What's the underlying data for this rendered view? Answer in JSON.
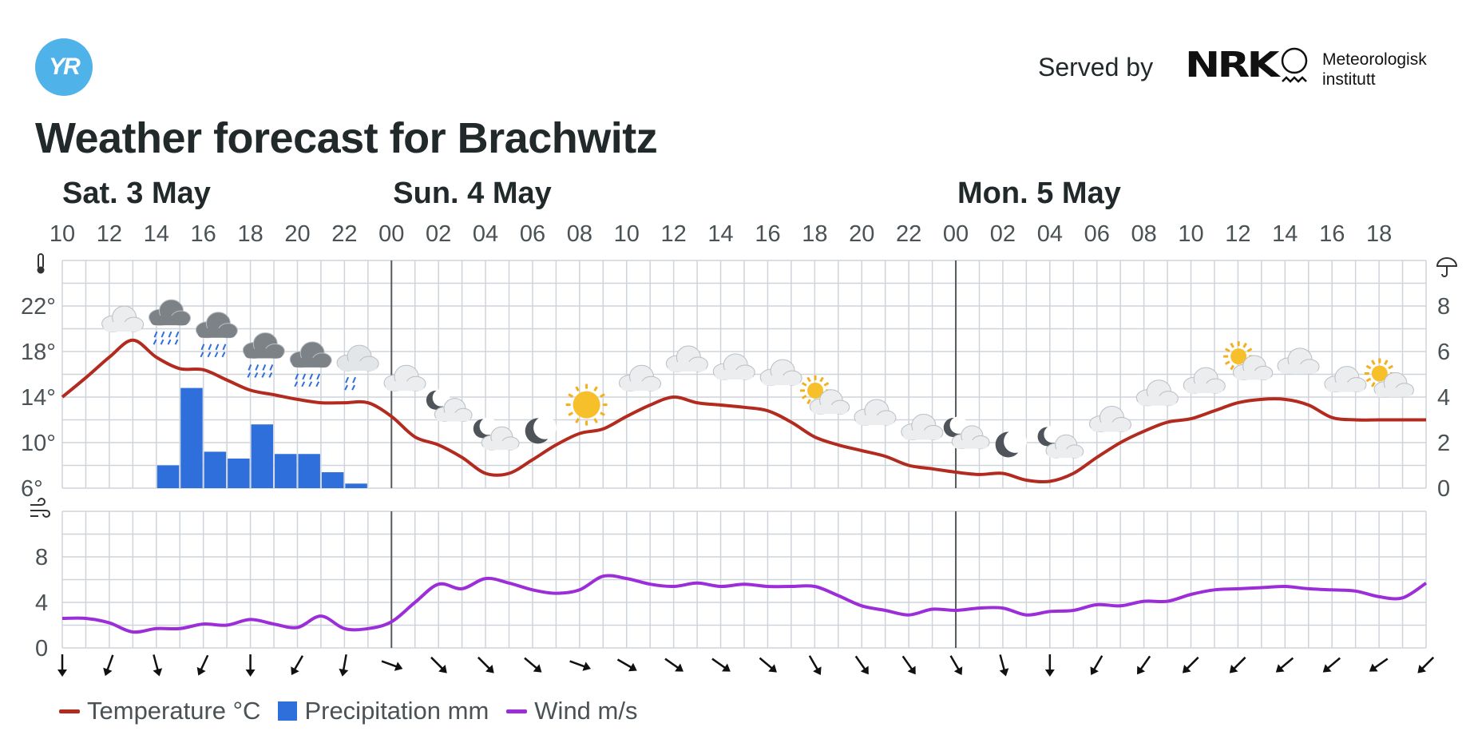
{
  "header": {
    "logo_text": "YR",
    "served_by": "Served by",
    "nrk_logo": "NRK",
    "met_line1": "Meteorologisk",
    "met_line2": "institutt"
  },
  "title": "Weather forecast for Brachwitz",
  "legend": {
    "temperature": "Temperature °C",
    "precipitation": "Precipitation mm",
    "wind": "Wind m/s"
  },
  "colors": {
    "temperature": "#b32a1f",
    "precipitation": "#2f6fdc",
    "wind": "#9b2ed8",
    "grid": "#cfd4da",
    "day_separator": "#555b5e"
  },
  "chart_data": [
    {
      "type": "line",
      "days": [
        {
          "label": "Sat. 3 May",
          "start_hour": 10
        },
        {
          "label": "Sun. 4 May",
          "start_hour": 24
        },
        {
          "label": "Mon. 5 May",
          "start_hour": 48
        }
      ],
      "x_hours": [
        10,
        11,
        12,
        13,
        14,
        15,
        16,
        17,
        18,
        19,
        20,
        21,
        22,
        23,
        24,
        25,
        26,
        27,
        28,
        29,
        30,
        31,
        32,
        33,
        34,
        35,
        36,
        37,
        38,
        39,
        40,
        41,
        42,
        43,
        44,
        45,
        46,
        47,
        48,
        49,
        50,
        51,
        52,
        53,
        54,
        55,
        56,
        57,
        58,
        59,
        60,
        61,
        62,
        63,
        64,
        65,
        66,
        67,
        68
      ],
      "x_tick_labels": [
        "10",
        "12",
        "14",
        "16",
        "18",
        "20",
        "22",
        "00",
        "02",
        "04",
        "06",
        "08",
        "10",
        "12",
        "14",
        "16",
        "18",
        "20",
        "22",
        "00",
        "02",
        "04",
        "06",
        "08",
        "10",
        "12",
        "14",
        "16",
        "18"
      ],
      "temperature": {
        "name": "Temperature °C",
        "y_ticks": [
          "6°",
          "10°",
          "14°",
          "18°",
          "22°"
        ],
        "ylim": [
          6,
          26
        ],
        "values": [
          14,
          15.7,
          17.5,
          19,
          17.5,
          16.5,
          16.4,
          15.5,
          14.6,
          14.2,
          13.8,
          13.5,
          13.5,
          13.5,
          12.3,
          10.5,
          9.8,
          8.7,
          7.3,
          7.3,
          8.5,
          9.8,
          10.8,
          11.2,
          12.3,
          13.3,
          14,
          13.5,
          13.3,
          13.1,
          12.8,
          11.8,
          10.5,
          9.8,
          9.3,
          8.8,
          8,
          7.7,
          7.4,
          7.2,
          7.3,
          6.7,
          6.6,
          7.3,
          8.7,
          10,
          11,
          11.8,
          12.1,
          12.8,
          13.5,
          13.8,
          13.8,
          13.3,
          12.2,
          12,
          12,
          12,
          12
        ]
      },
      "precipitation": {
        "name": "Precipitation mm",
        "y_ticks": [
          "0",
          "2",
          "4",
          "6",
          "8"
        ],
        "ylim": [
          0,
          10
        ],
        "type": "bar",
        "hours": [
          14,
          15,
          16,
          17,
          18,
          19,
          20,
          21,
          22
        ],
        "values": [
          1,
          4.4,
          1.6,
          1.3,
          2.8,
          1.5,
          1.5,
          0.7,
          0.2
        ]
      },
      "weather_icons": [
        {
          "hour": 12,
          "icon": "cloud-icon"
        },
        {
          "hour": 14,
          "icon": "rain-cloud-icon"
        },
        {
          "hour": 16,
          "icon": "rain-cloud-icon"
        },
        {
          "hour": 18,
          "icon": "rain-cloud-icon"
        },
        {
          "hour": 20,
          "icon": "rain-cloud-icon"
        },
        {
          "hour": 22,
          "icon": "light-rain-cloud-icon"
        },
        {
          "hour": 24,
          "icon": "cloud-icon"
        },
        {
          "hour": 26,
          "icon": "moon-cloud-icon"
        },
        {
          "hour": 28,
          "icon": "moon-cloud-icon"
        },
        {
          "hour": 30,
          "icon": "moon-icon"
        },
        {
          "hour": 32,
          "icon": "sun-icon"
        },
        {
          "hour": 34,
          "icon": "cloud-icon"
        },
        {
          "hour": 36,
          "icon": "cloud-icon"
        },
        {
          "hour": 38,
          "icon": "cloud-icon"
        },
        {
          "hour": 40,
          "icon": "cloud-icon"
        },
        {
          "hour": 42,
          "icon": "sun-cloud-icon"
        },
        {
          "hour": 44,
          "icon": "cloud-icon"
        },
        {
          "hour": 46,
          "icon": "cloud-icon"
        },
        {
          "hour": 48,
          "icon": "moon-cloud-icon"
        },
        {
          "hour": 50,
          "icon": "moon-icon"
        },
        {
          "hour": 52,
          "icon": "moon-cloud-icon"
        },
        {
          "hour": 54,
          "icon": "cloud-icon"
        },
        {
          "hour": 56,
          "icon": "cloud-icon"
        },
        {
          "hour": 58,
          "icon": "cloud-icon"
        },
        {
          "hour": 60,
          "icon": "sun-cloud-icon"
        },
        {
          "hour": 62,
          "icon": "cloud-icon"
        },
        {
          "hour": 64,
          "icon": "cloud-icon"
        },
        {
          "hour": 66,
          "icon": "sun-cloud-icon"
        }
      ]
    },
    {
      "type": "line",
      "name": "Wind m/s",
      "y_ticks": [
        "0",
        "4",
        "8"
      ],
      "ylim": [
        0,
        12
      ],
      "x_hours": [
        10,
        11,
        12,
        13,
        14,
        15,
        16,
        17,
        18,
        19,
        20,
        21,
        22,
        23,
        24,
        25,
        26,
        27,
        28,
        29,
        30,
        31,
        32,
        33,
        34,
        35,
        36,
        37,
        38,
        39,
        40,
        41,
        42,
        43,
        44,
        45,
        46,
        47,
        48,
        49,
        50,
        51,
        52,
        53,
        54,
        55,
        56,
        57,
        58,
        59,
        60,
        61,
        62,
        63,
        64,
        65,
        66,
        67,
        68
      ],
      "values": [
        2.6,
        2.6,
        2.2,
        1.4,
        1.7,
        1.7,
        2.1,
        2,
        2.5,
        2.1,
        1.8,
        2.8,
        1.7,
        1.7,
        2.3,
        4,
        5.6,
        5.2,
        6.1,
        5.7,
        5.1,
        4.8,
        5.1,
        6.3,
        6.1,
        5.6,
        5.4,
        5.7,
        5.4,
        5.6,
        5.4,
        5.4,
        5.4,
        4.6,
        3.7,
        3.3,
        2.9,
        3.4,
        3.3,
        3.5,
        3.5,
        2.9,
        3.2,
        3.3,
        3.8,
        3.7,
        4.1,
        4.1,
        4.7,
        5.1,
        5.2,
        5.3,
        5.4,
        5.2,
        5.1,
        5,
        4.5,
        4.4,
        5.7
      ],
      "direction_hours": [
        10,
        12,
        14,
        16,
        18,
        20,
        22,
        24,
        26,
        28,
        30,
        32,
        34,
        36,
        38,
        40,
        42,
        44,
        46,
        48,
        50,
        52,
        54,
        56,
        58,
        60,
        62,
        64,
        66,
        68
      ],
      "direction_deg": [
        0,
        20,
        345,
        25,
        0,
        30,
        10,
        290,
        315,
        315,
        310,
        290,
        300,
        305,
        305,
        310,
        330,
        325,
        325,
        330,
        345,
        0,
        30,
        35,
        45,
        45,
        50,
        50,
        55,
        45
      ]
    }
  ]
}
